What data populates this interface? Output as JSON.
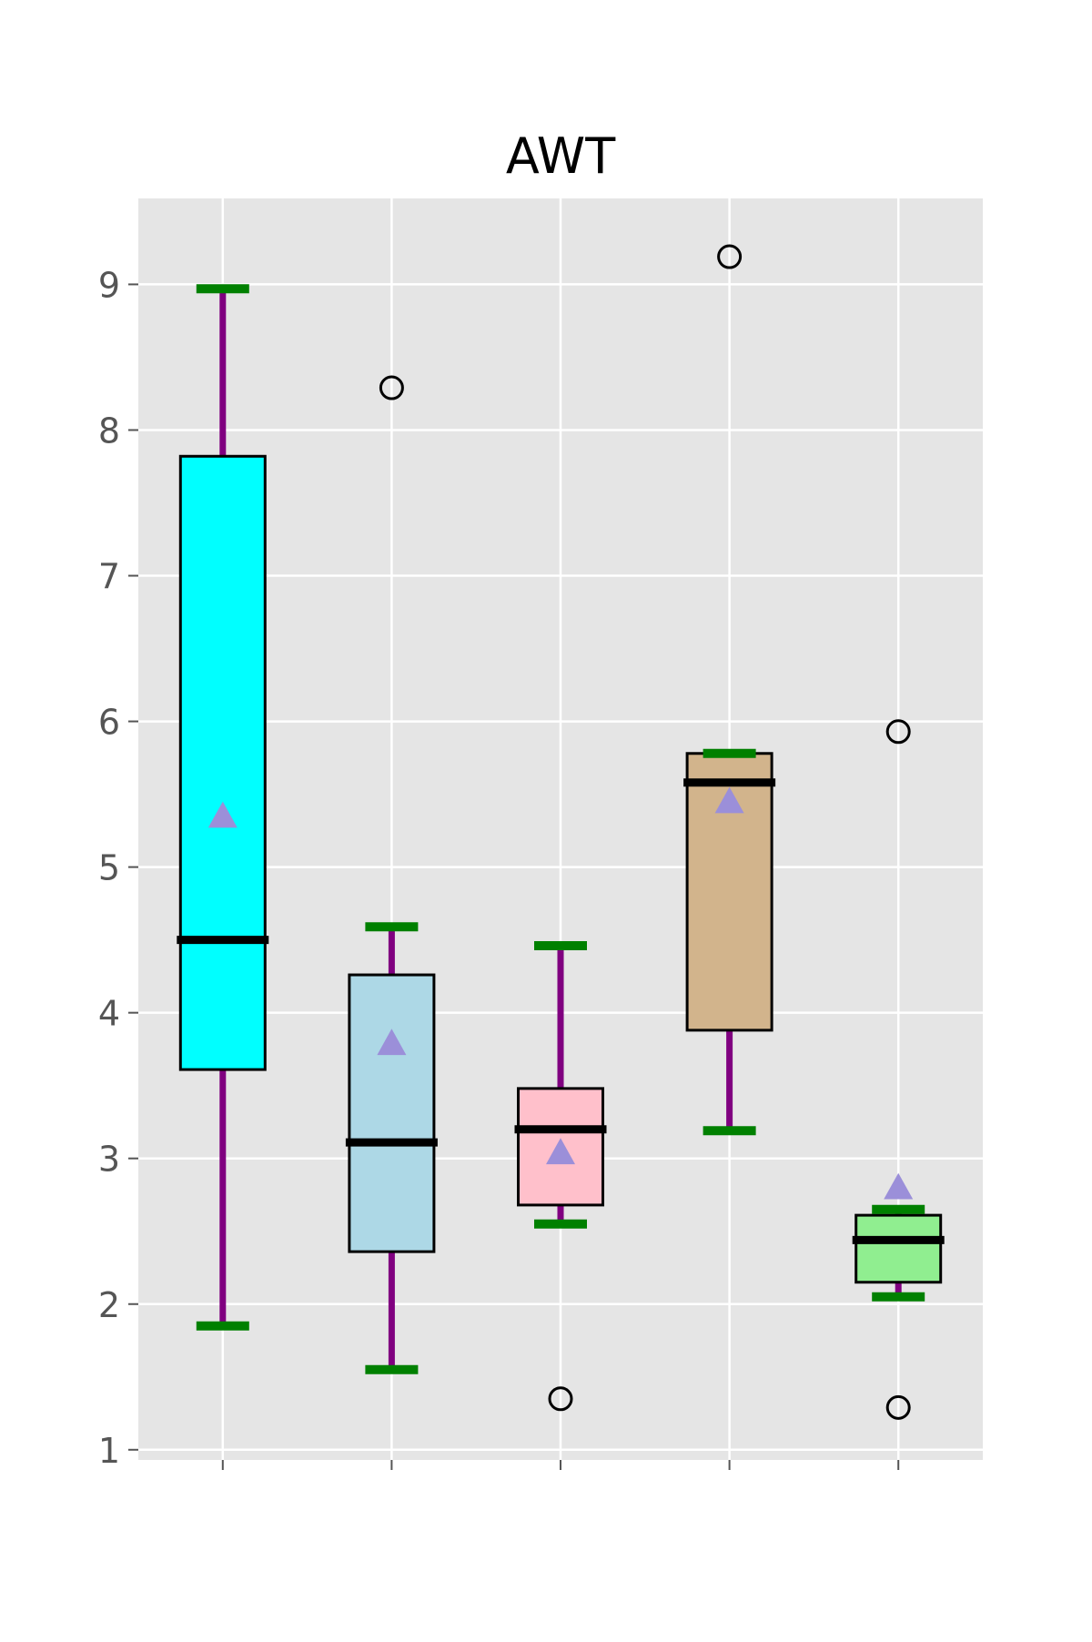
{
  "chart_data": {
    "type": "boxplot",
    "title": "AWT",
    "xlabel": "",
    "ylabel": "",
    "ylim": [
      0.93,
      9.59
    ],
    "yticks": [
      1,
      2,
      3,
      4,
      5,
      6,
      7,
      8,
      9
    ],
    "ytick_labels": [
      "1",
      "2",
      "3",
      "4",
      "5",
      "6",
      "7",
      "8",
      "9"
    ],
    "xtick_labels": [
      "",
      "",
      "",
      "",
      ""
    ],
    "grid": true,
    "style": "ggplot",
    "colors": {
      "background": "#e5e5e5",
      "grid": "#ffffff",
      "whisker": "#800080",
      "cap": "#008000",
      "median": "#000000",
      "mean_marker": "#9b8fd9",
      "box_edge": "#000000",
      "tick_label": "#555555",
      "title": "#000000"
    },
    "boxes": [
      {
        "q1": 3.61,
        "median": 4.5,
        "q3": 7.82,
        "whisker_low": 1.85,
        "whisker_high": 8.97,
        "mean": 5.35,
        "outliers": [],
        "color": "#00ffff"
      },
      {
        "q1": 2.36,
        "median": 3.11,
        "q3": 4.26,
        "whisker_low": 1.55,
        "whisker_high": 4.59,
        "mean": 3.79,
        "outliers": [
          8.29
        ],
        "color": "#add8e6"
      },
      {
        "q1": 2.68,
        "median": 3.2,
        "q3": 3.48,
        "whisker_low": 2.55,
        "whisker_high": 4.46,
        "mean": 3.04,
        "outliers": [
          1.35
        ],
        "color": "#ffc0cb"
      },
      {
        "q1": 3.88,
        "median": 5.58,
        "q3": 5.78,
        "whisker_low": 3.19,
        "whisker_high": 5.78,
        "mean": 5.45,
        "outliers": [
          9.19
        ],
        "color": "#d2b48c"
      },
      {
        "q1": 2.15,
        "median": 2.44,
        "q3": 2.61,
        "whisker_low": 2.05,
        "whisker_high": 2.65,
        "mean": 2.8,
        "outliers": [
          5.93,
          1.29
        ],
        "color": "#90ee90"
      }
    ]
  }
}
